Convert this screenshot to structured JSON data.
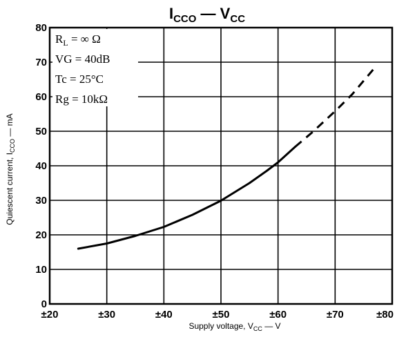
{
  "chart_data": {
    "type": "line",
    "title_main": "I",
    "title_main_sub": "CCO",
    "title_sep": " — ",
    "title_var": "V",
    "title_var_sub": "CC",
    "xlabel_pre": "Supply voltage, V",
    "xlabel_sub": "CC",
    "xlabel_post": " — V",
    "ylabel_pre": "Quiescent current, I",
    "ylabel_sub": "CCO",
    "ylabel_post": " — mA",
    "x_ticks": [
      "±20",
      "±30",
      "±40",
      "±50",
      "±60",
      "±70",
      "±80"
    ],
    "x_tick_values": [
      20,
      30,
      40,
      50,
      60,
      70,
      80
    ],
    "y_ticks": [
      "0",
      "10",
      "20",
      "30",
      "40",
      "50",
      "60",
      "70",
      "80"
    ],
    "y_tick_values": [
      0,
      10,
      20,
      30,
      40,
      50,
      60,
      70,
      80
    ],
    "xlim": [
      20,
      80
    ],
    "ylim": [
      0,
      80
    ],
    "grid": true,
    "conditions": [
      "R",
      "L",
      " = ∞ Ω",
      "VG = 40dB",
      "Tc = 25°C",
      "Rg = 10kΩ"
    ],
    "series": [
      {
        "style": "solid",
        "x": [
          25,
          30,
          35,
          40,
          45,
          50,
          55,
          58,
          60,
          63
        ],
        "y": [
          16,
          17.5,
          19.7,
          22.3,
          25.8,
          29.9,
          35,
          38.5,
          41,
          45.5
        ]
      },
      {
        "style": "dashed",
        "x": [
          63,
          66,
          70,
          73,
          77
        ],
        "y": [
          45.5,
          49.7,
          55.8,
          60.7,
          68.5
        ]
      }
    ]
  }
}
